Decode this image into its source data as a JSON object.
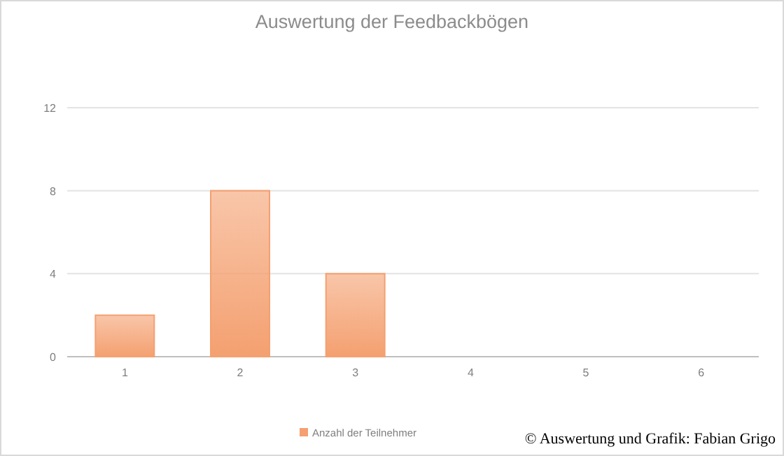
{
  "chart_data": {
    "type": "bar",
    "title": "Auswertung der Feedbackbögen",
    "categories": [
      "1",
      "2",
      "3",
      "4",
      "5",
      "6"
    ],
    "series": [
      {
        "name": "Anzahl der Teilnehmer",
        "color": "#f4a070",
        "values": [
          2,
          8,
          4,
          0,
          0,
          0
        ]
      }
    ],
    "ylim": [
      0,
      12
    ],
    "yticks": [
      0,
      4,
      8,
      12
    ],
    "grid": "y",
    "legend": "bottom",
    "annotations": [
      "© Auswertung und Grafik: Fabian Grigo"
    ]
  }
}
